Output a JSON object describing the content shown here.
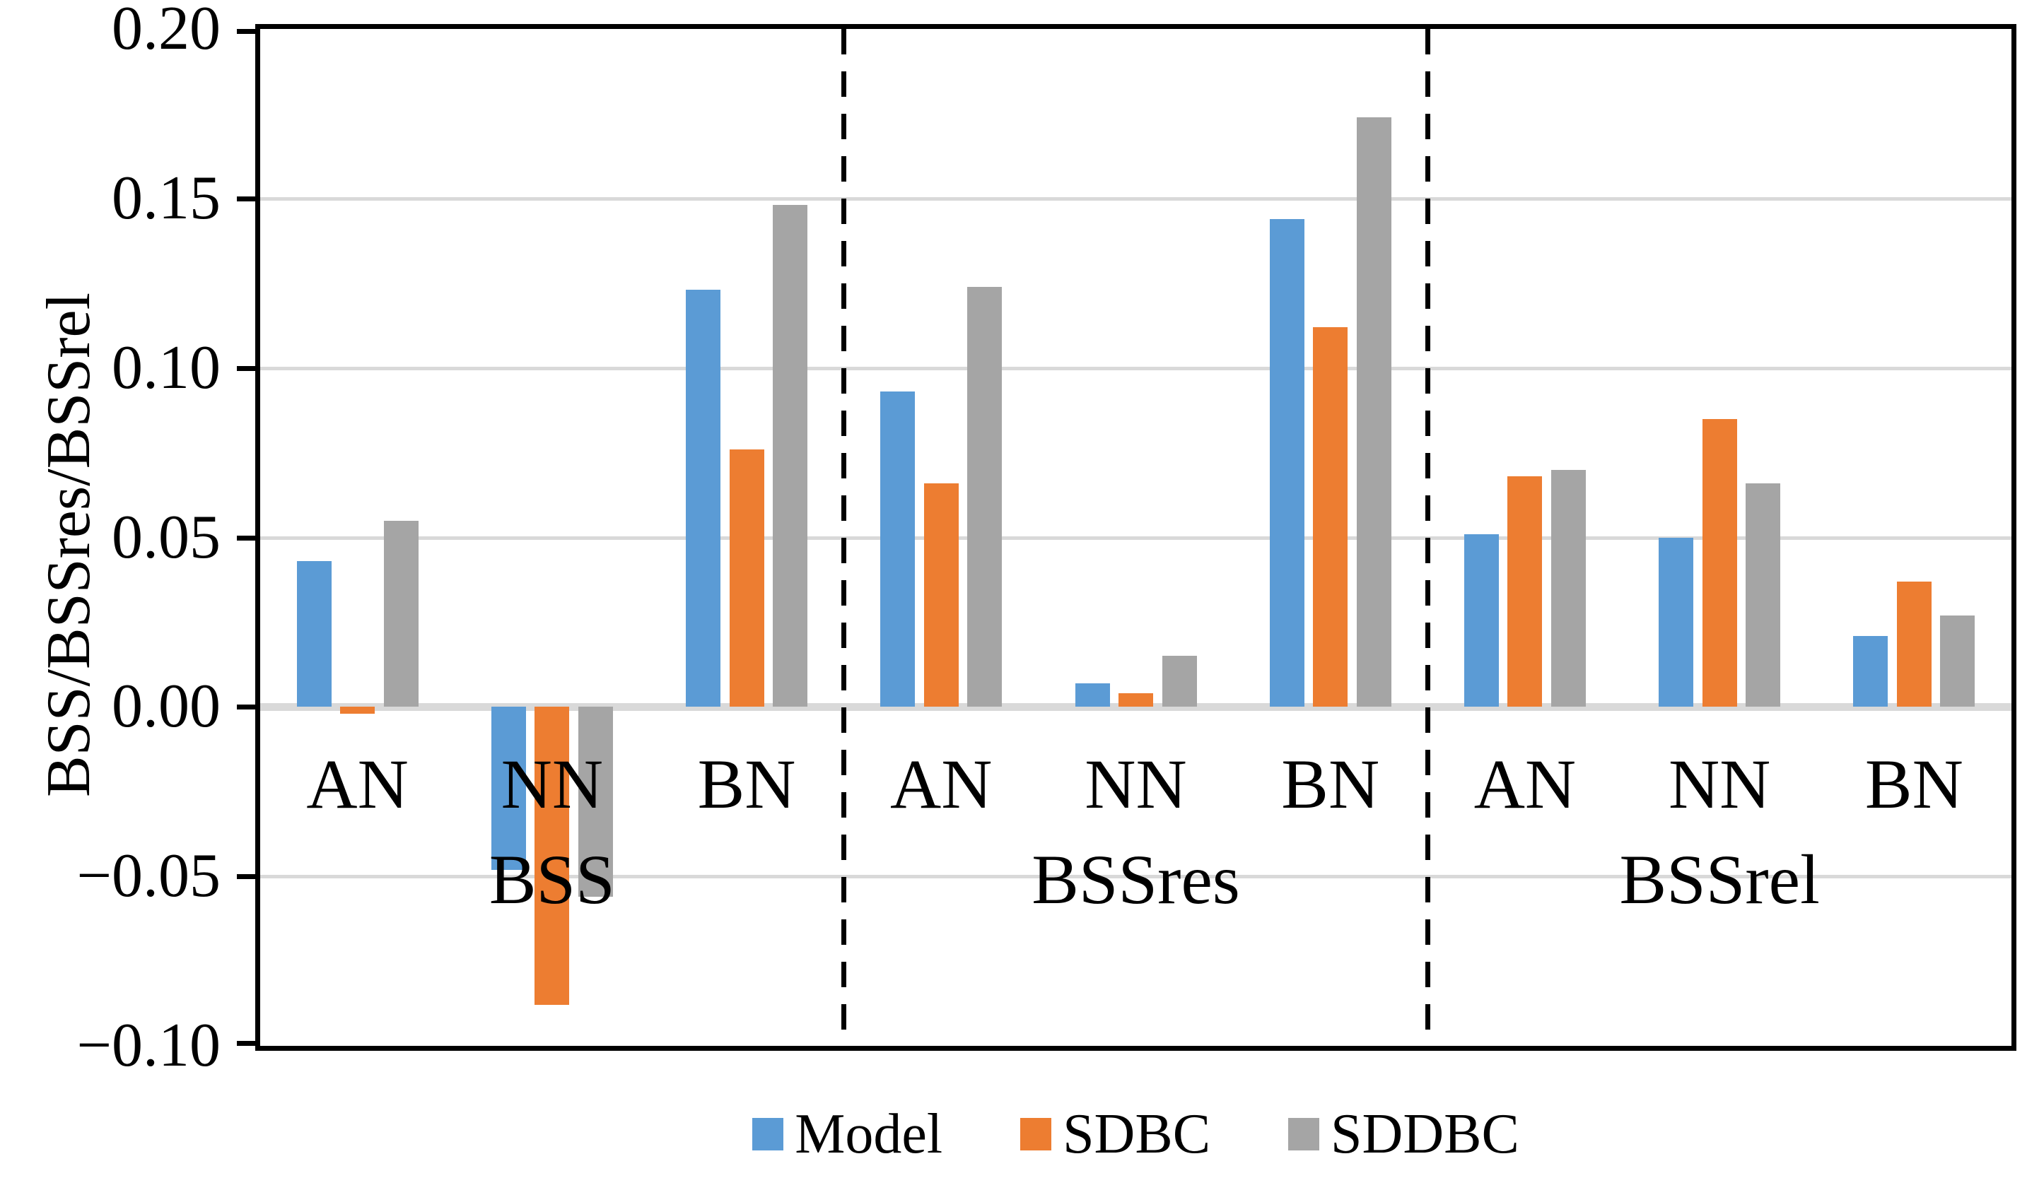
{
  "y_axis": {
    "title": "BSS/BSSres/BSSrel",
    "tick_labels": [
      "0.20",
      "0.15",
      "0.10",
      "0.05",
      "0.00",
      "−0.05",
      "−0.10"
    ],
    "tick_values": [
      0.2,
      0.15,
      0.1,
      0.05,
      0.0,
      -0.05,
      -0.1
    ]
  },
  "legend": {
    "items": [
      {
        "label": "Model",
        "color": "#5B9BD5"
      },
      {
        "label": "SDBC",
        "color": "#ED7D31"
      },
      {
        "label": "SDDBC",
        "color": "#A5A5A5"
      }
    ]
  },
  "colors": {
    "model_blue": "#5B9BD5",
    "sdbc_orange": "#ED7D31",
    "sddbc_gray": "#A5A5A5",
    "gridline": "#D9D9D9",
    "axis": "#000000"
  },
  "chart_data": {
    "type": "bar",
    "title": "",
    "xlabel": "",
    "ylabel": "BSS/BSSres/BSSrel",
    "ylim": [
      -0.1,
      0.2
    ],
    "ytick_step": 0.05,
    "grid": true,
    "legend_position": "bottom",
    "sections": [
      {
        "label": "BSS",
        "categories": [
          "AN",
          "NN",
          "BN"
        ]
      },
      {
        "label": "BSSres",
        "categories": [
          "AN",
          "NN",
          "BN"
        ]
      },
      {
        "label": "BSSrel",
        "categories": [
          "AN",
          "NN",
          "BN"
        ]
      }
    ],
    "categories": [
      "AN",
      "NN",
      "BN",
      "AN",
      "NN",
      "BN",
      "AN",
      "NN",
      "BN"
    ],
    "section_of_category": [
      "BSS",
      "BSS",
      "BSS",
      "BSSres",
      "BSSres",
      "BSSres",
      "BSSrel",
      "BSSrel",
      "BSSrel"
    ],
    "series": [
      {
        "name": "Model",
        "color": "#5B9BD5",
        "values": [
          0.043,
          -0.048,
          0.123,
          0.093,
          0.007,
          0.144,
          0.051,
          0.05,
          0.021
        ]
      },
      {
        "name": "SDBC",
        "color": "#ED7D31",
        "values": [
          -0.002,
          -0.088,
          0.076,
          0.066,
          0.004,
          0.112,
          0.068,
          0.085,
          0.037
        ]
      },
      {
        "name": "SDDBC",
        "color": "#A5A5A5",
        "values": [
          0.055,
          -0.056,
          0.148,
          0.124,
          0.015,
          0.174,
          0.07,
          0.066,
          0.027
        ]
      }
    ],
    "section_dividers_at_category_boundaries": [
      3,
      6
    ],
    "divider_style": "dashed"
  }
}
